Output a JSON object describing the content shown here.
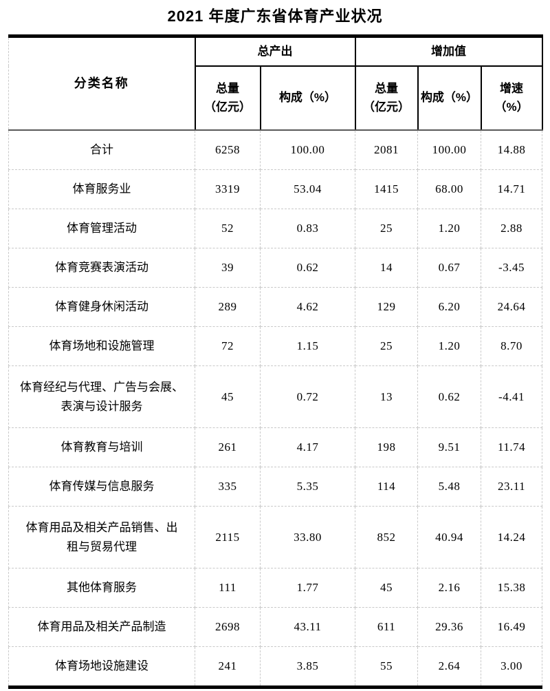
{
  "title": "2021 年度广东省体育产业状况",
  "colors": {
    "background": "#ffffff",
    "text": "#000000",
    "strong_border": "#000000",
    "header_rule": "#595959",
    "grid_dashed": "#c9c9c9"
  },
  "table": {
    "header": {
      "category": "分类名称",
      "group_output": "总产出",
      "group_added_value": "增加值",
      "sub_output_total": "总量\n（亿元）",
      "sub_output_share": "构成（%）",
      "sub_added_total": "总量\n（亿元）",
      "sub_added_share": "构成（%）",
      "sub_growth": "增速\n（%）"
    },
    "rows": [
      {
        "name": "合计",
        "output_total": "6258",
        "output_share": "100.00",
        "added_total": "2081",
        "added_share": "100.00",
        "growth": "14.88"
      },
      {
        "name": "体育服务业",
        "output_total": "3319",
        "output_share": "53.04",
        "added_total": "1415",
        "added_share": "68.00",
        "growth": "14.71"
      },
      {
        "name": "体育管理活动",
        "output_total": "52",
        "output_share": "0.83",
        "added_total": "25",
        "added_share": "1.20",
        "growth": "2.88"
      },
      {
        "name": "体育竞赛表演活动",
        "output_total": "39",
        "output_share": "0.62",
        "added_total": "14",
        "added_share": "0.67",
        "growth": "-3.45"
      },
      {
        "name": "体育健身休闲活动",
        "output_total": "289",
        "output_share": "4.62",
        "added_total": "129",
        "added_share": "6.20",
        "growth": "24.64"
      },
      {
        "name": "体育场地和设施管理",
        "output_total": "72",
        "output_share": "1.15",
        "added_total": "25",
        "added_share": "1.20",
        "growth": "8.70"
      },
      {
        "name": "体育经纪与代理、广告与会展、\n表演与设计服务",
        "output_total": "45",
        "output_share": "0.72",
        "added_total": "13",
        "added_share": "0.62",
        "growth": "-4.41"
      },
      {
        "name": "体育教育与培训",
        "output_total": "261",
        "output_share": "4.17",
        "added_total": "198",
        "added_share": "9.51",
        "growth": "11.74"
      },
      {
        "name": "体育传媒与信息服务",
        "output_total": "335",
        "output_share": "5.35",
        "added_total": "114",
        "added_share": "5.48",
        "growth": "23.11"
      },
      {
        "name": "体育用品及相关产品销售、出\n租与贸易代理",
        "output_total": "2115",
        "output_share": "33.80",
        "added_total": "852",
        "added_share": "40.94",
        "growth": "14.24"
      },
      {
        "name": "其他体育服务",
        "output_total": "111",
        "output_share": "1.77",
        "added_total": "45",
        "added_share": "2.16",
        "growth": "15.38"
      },
      {
        "name": "体育用品及相关产品制造",
        "output_total": "2698",
        "output_share": "43.11",
        "added_total": "611",
        "added_share": "29.36",
        "growth": "16.49"
      },
      {
        "name": "体育场地设施建设",
        "output_total": "241",
        "output_share": "3.85",
        "added_total": "55",
        "added_share": "2.64",
        "growth": "3.00"
      }
    ]
  }
}
